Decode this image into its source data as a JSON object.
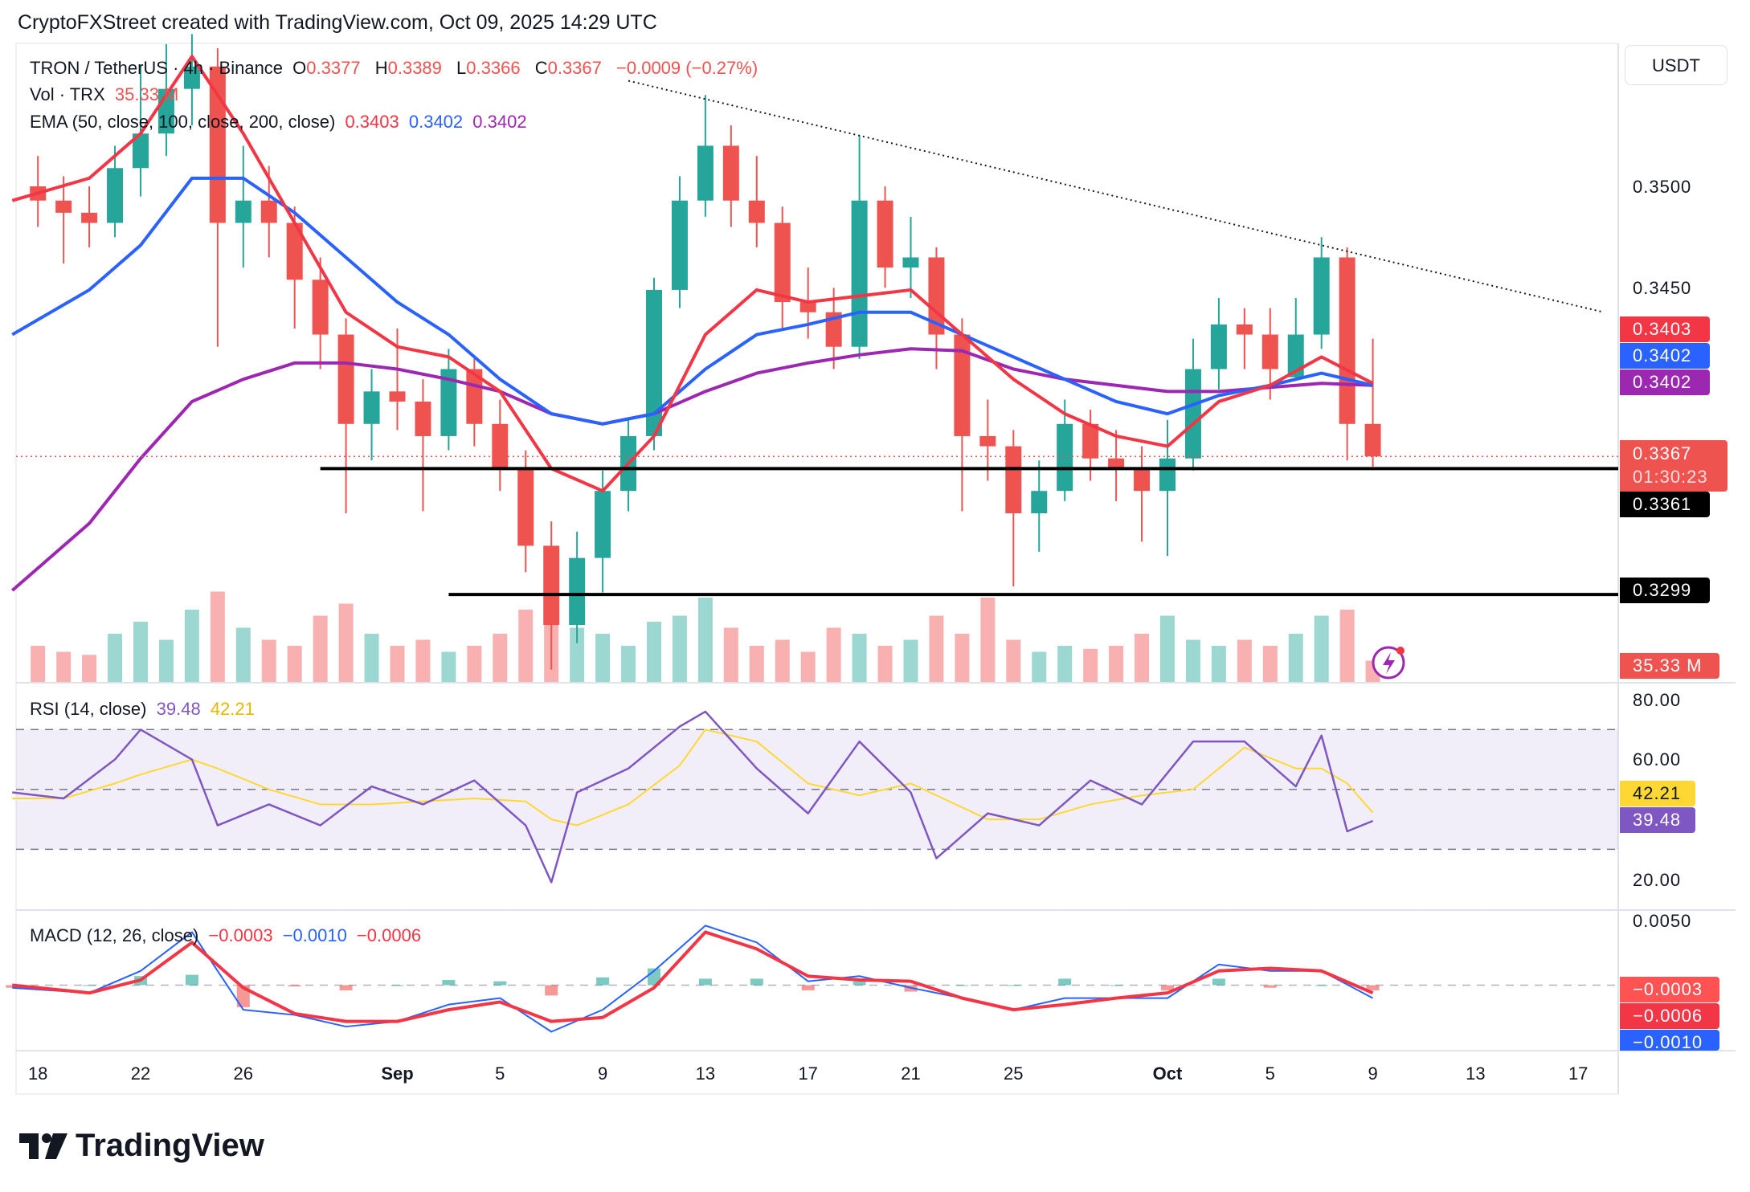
{
  "header": {
    "text": "CryptoFXStreet created with TradingView.com, Oct 09, 2025 14:29 UTC"
  },
  "legend": {
    "symbol": "TRON / TetherUS · 4h · Binance",
    "o_label": "O",
    "o": "0.3377",
    "h_label": "H",
    "h": "0.3389",
    "l_label": "L",
    "l": "0.3366",
    "c_label": "C",
    "c": "0.3367",
    "change": "−0.0009 (−0.27%)",
    "vol_label": "Vol · TRX",
    "vol": "35.33 M",
    "ema_label": "EMA (50, close, 100, close, 200, close)",
    "ema50": "0.3403",
    "ema100": "0.3402",
    "ema200": "0.3402",
    "rsi_label": "RSI (14, close)",
    "rsi": "39.48",
    "rsi_ma": "42.21",
    "macd_label": "MACD (12, 26, close)",
    "macd_hist": "−0.0003",
    "macd_line": "−0.0010",
    "macd_signal": "−0.0006"
  },
  "price_axis": {
    "currency": "USDT",
    "ticks": [
      "0.3500",
      "0.3450"
    ],
    "badges": {
      "ema50": "0.3403",
      "ema100": "0.3402",
      "ema200": "0.3402",
      "last": "0.3367",
      "countdown": "01:30:23",
      "support1": "0.3361",
      "support2": "0.3299",
      "volume": "35.33 M"
    }
  },
  "rsi_axis": {
    "ticks": [
      "80.00",
      "60.00",
      "20.00"
    ],
    "badges": {
      "ma": "42.21",
      "rsi": "39.48"
    }
  },
  "macd_axis": {
    "ticks": [
      "0.0050"
    ],
    "badges": {
      "hist": "−0.0003",
      "signal": "−0.0006",
      "macd": "−0.0010"
    }
  },
  "time_axis": [
    {
      "label": "18",
      "date": "2025-08-18"
    },
    {
      "label": "22",
      "date": "2025-08-22"
    },
    {
      "label": "26",
      "date": "2025-08-26"
    },
    {
      "label": "Sep",
      "date": "2025-09-01"
    },
    {
      "label": "5",
      "date": "2025-09-05"
    },
    {
      "label": "9",
      "date": "2025-09-09"
    },
    {
      "label": "13",
      "date": "2025-09-13"
    },
    {
      "label": "17",
      "date": "2025-09-17"
    },
    {
      "label": "21",
      "date": "2025-09-21"
    },
    {
      "label": "25",
      "date": "2025-09-25"
    },
    {
      "label": "Oct",
      "date": "2025-10-01"
    },
    {
      "label": "5",
      "date": "2025-10-05"
    },
    {
      "label": "9",
      "date": "2025-10-09"
    },
    {
      "label": "13",
      "date": "2025-10-13"
    },
    {
      "label": "17",
      "date": "2025-10-17"
    }
  ],
  "branding": {
    "logo_text": "TradingView"
  },
  "colors": {
    "up": "#26a69a",
    "down": "#ef5350",
    "ema50": "#f23645",
    "ema100": "#2962ff",
    "ema200": "#9c27b0",
    "rsi": "#7e57c2",
    "rsi_ma": "#fdd835",
    "macd": "#2962ff",
    "signal": "#f23645"
  },
  "chart_data": {
    "type": "candlestick",
    "price_range": [
      0.3262,
      0.3575
    ],
    "candles": [
      [
        "2025-08-18",
        0.35,
        0.3515,
        0.348,
        0.3493,
        60
      ],
      [
        "2025-08-19",
        0.3493,
        0.3505,
        0.3462,
        0.3487,
        50
      ],
      [
        "2025-08-20",
        0.3487,
        0.35,
        0.347,
        0.3482,
        45
      ],
      [
        "2025-08-21",
        0.3482,
        0.352,
        0.3475,
        0.3509,
        80
      ],
      [
        "2025-08-22",
        0.3509,
        0.356,
        0.3495,
        0.3526,
        100
      ],
      [
        "2025-08-23",
        0.3526,
        0.357,
        0.3515,
        0.3548,
        70
      ],
      [
        "2025-08-24",
        0.3548,
        0.3575,
        0.353,
        0.3559,
        120
      ],
      [
        "2025-08-25",
        0.3559,
        0.3568,
        0.3421,
        0.3482,
        150
      ],
      [
        "2025-08-26",
        0.3482,
        0.352,
        0.346,
        0.3493,
        90
      ],
      [
        "2025-08-27",
        0.3493,
        0.351,
        0.3465,
        0.3482,
        70
      ],
      [
        "2025-08-28",
        0.3482,
        0.349,
        0.343,
        0.3454,
        60
      ],
      [
        "2025-08-29",
        0.3454,
        0.3465,
        0.341,
        0.3427,
        110
      ],
      [
        "2025-08-30",
        0.3427,
        0.3435,
        0.3339,
        0.3383,
        130
      ],
      [
        "2025-08-31",
        0.3383,
        0.341,
        0.3365,
        0.3399,
        80
      ],
      [
        "2025-09-01",
        0.3399,
        0.343,
        0.338,
        0.3394,
        60
      ],
      [
        "2025-09-02",
        0.3394,
        0.3405,
        0.334,
        0.3377,
        70
      ],
      [
        "2025-09-03",
        0.3377,
        0.342,
        0.337,
        0.341,
        50
      ],
      [
        "2025-09-04",
        0.341,
        0.3415,
        0.3372,
        0.3383,
        60
      ],
      [
        "2025-09-05",
        0.3383,
        0.3395,
        0.335,
        0.3361,
        80
      ],
      [
        "2025-09-06",
        0.3361,
        0.337,
        0.331,
        0.3323,
        120
      ],
      [
        "2025-09-07",
        0.3323,
        0.3335,
        0.3262,
        0.3284,
        190
      ],
      [
        "2025-09-08",
        0.3284,
        0.333,
        0.3275,
        0.3317,
        90
      ],
      [
        "2025-09-09",
        0.3317,
        0.336,
        0.33,
        0.335,
        80
      ],
      [
        "2025-09-10",
        0.335,
        0.3385,
        0.334,
        0.3377,
        60
      ],
      [
        "2025-09-11",
        0.3377,
        0.3455,
        0.337,
        0.3449,
        100
      ],
      [
        "2025-09-12",
        0.3449,
        0.3505,
        0.344,
        0.3493,
        110
      ],
      [
        "2025-09-13",
        0.3493,
        0.3545,
        0.3485,
        0.352,
        140
      ],
      [
        "2025-09-14",
        0.352,
        0.353,
        0.348,
        0.3493,
        90
      ],
      [
        "2025-09-15",
        0.3493,
        0.3515,
        0.347,
        0.3482,
        60
      ],
      [
        "2025-09-16",
        0.3482,
        0.349,
        0.343,
        0.3443,
        70
      ],
      [
        "2025-09-17",
        0.3443,
        0.346,
        0.3425,
        0.3438,
        50
      ],
      [
        "2025-09-18",
        0.3438,
        0.345,
        0.341,
        0.3421,
        90
      ],
      [
        "2025-09-19",
        0.3421,
        0.3525,
        0.3415,
        0.3493,
        80
      ],
      [
        "2025-09-20",
        0.3493,
        0.35,
        0.345,
        0.346,
        60
      ],
      [
        "2025-09-21",
        0.346,
        0.3485,
        0.3445,
        0.3465,
        70
      ],
      [
        "2025-09-22",
        0.3465,
        0.347,
        0.341,
        0.3427,
        110
      ],
      [
        "2025-09-23",
        0.3427,
        0.3435,
        0.334,
        0.3377,
        80
      ],
      [
        "2025-09-24",
        0.3377,
        0.3395,
        0.3355,
        0.3372,
        140
      ],
      [
        "2025-09-25",
        0.3372,
        0.338,
        0.3303,
        0.3339,
        70
      ],
      [
        "2025-09-26",
        0.3339,
        0.3365,
        0.332,
        0.335,
        50
      ],
      [
        "2025-09-27",
        0.335,
        0.3395,
        0.3345,
        0.3383,
        60
      ],
      [
        "2025-09-28",
        0.3383,
        0.339,
        0.3355,
        0.3366,
        55
      ],
      [
        "2025-09-29",
        0.3366,
        0.338,
        0.3345,
        0.3361,
        60
      ],
      [
        "2025-09-30",
        0.3361,
        0.3372,
        0.3325,
        0.335,
        80
      ],
      [
        "2025-10-01",
        0.335,
        0.3385,
        0.3318,
        0.3366,
        110
      ],
      [
        "2025-10-02",
        0.3366,
        0.3425,
        0.336,
        0.341,
        70
      ],
      [
        "2025-10-03",
        0.341,
        0.3445,
        0.34,
        0.3432,
        60
      ],
      [
        "2025-10-04",
        0.3432,
        0.344,
        0.341,
        0.3427,
        70
      ],
      [
        "2025-10-05",
        0.3427,
        0.344,
        0.3395,
        0.341,
        60
      ],
      [
        "2025-10-06",
        0.3406,
        0.3445,
        0.3405,
        0.3427,
        80
      ],
      [
        "2025-10-07",
        0.3427,
        0.3475,
        0.342,
        0.3465,
        110
      ],
      [
        "2025-10-08",
        0.3465,
        0.347,
        0.3365,
        0.3383,
        120
      ],
      [
        "2025-10-09",
        0.3383,
        0.3425,
        0.3362,
        0.3367,
        35.33
      ]
    ],
    "ema": {
      "dates": [
        "2025-08-17",
        "2025-08-20",
        "2025-08-22",
        "2025-08-24",
        "2025-08-26",
        "2025-08-28",
        "2025-08-30",
        "2025-09-01",
        "2025-09-03",
        "2025-09-05",
        "2025-09-07",
        "2025-09-09",
        "2025-09-11",
        "2025-09-13",
        "2025-09-15",
        "2025-09-17",
        "2025-09-19",
        "2025-09-21",
        "2025-09-23",
        "2025-09-25",
        "2025-09-27",
        "2025-09-29",
        "2025-10-01",
        "2025-10-03",
        "2025-10-05",
        "2025-10-07",
        "2025-10-09"
      ],
      "ema50": [
        0.3493,
        0.3504,
        0.3526,
        0.3564,
        0.3526,
        0.3482,
        0.3438,
        0.3421,
        0.3416,
        0.3399,
        0.3361,
        0.335,
        0.3377,
        0.3427,
        0.3449,
        0.3443,
        0.3446,
        0.3449,
        0.3427,
        0.3405,
        0.3388,
        0.3377,
        0.3372,
        0.3394,
        0.3402,
        0.3416,
        0.3403
      ],
      "ema100": [
        0.3427,
        0.3449,
        0.3471,
        0.3504,
        0.3504,
        0.3487,
        0.3465,
        0.3443,
        0.3427,
        0.3405,
        0.3388,
        0.3383,
        0.3388,
        0.341,
        0.3427,
        0.3432,
        0.3438,
        0.3438,
        0.3427,
        0.3416,
        0.3405,
        0.3394,
        0.3388,
        0.3397,
        0.3402,
        0.3408,
        0.3402
      ],
      "ema200": [
        0.3301,
        0.3334,
        0.3366,
        0.3394,
        0.3405,
        0.3413,
        0.3413,
        0.341,
        0.3405,
        0.3399,
        0.3388,
        0.3383,
        0.3388,
        0.3399,
        0.3408,
        0.3413,
        0.3417,
        0.342,
        0.3419,
        0.341,
        0.3405,
        0.3402,
        0.3399,
        0.3399,
        0.3401,
        0.3403,
        0.3402
      ]
    },
    "trendline": [
      [
        "2025-09-10",
        0.3552
      ],
      [
        "2025-10-18",
        0.3438
      ]
    ],
    "levels": [
      {
        "value": 0.3361,
        "from": "2025-08-29"
      },
      {
        "value": 0.3299,
        "from": "2025-09-03"
      }
    ],
    "last_price": 0.3367,
    "rsi": {
      "range": [
        10,
        90
      ],
      "bands": [
        70,
        50,
        30
      ],
      "dates": [
        "2025-08-17",
        "2025-08-19",
        "2025-08-21",
        "2025-08-22",
        "2025-08-24",
        "2025-08-25",
        "2025-08-27",
        "2025-08-29",
        "2025-08-31",
        "2025-09-02",
        "2025-09-04",
        "2025-09-06",
        "2025-09-07",
        "2025-09-08",
        "2025-09-10",
        "2025-09-12",
        "2025-09-13",
        "2025-09-15",
        "2025-09-17",
        "2025-09-19",
        "2025-09-21",
        "2025-09-22",
        "2025-09-24",
        "2025-09-26",
        "2025-09-28",
        "2025-09-30",
        "2025-10-02",
        "2025-10-04",
        "2025-10-06",
        "2025-10-07",
        "2025-10-08",
        "2025-10-09"
      ],
      "rsi": [
        49,
        47,
        60,
        70,
        60,
        38,
        45,
        38,
        51,
        45,
        53,
        38,
        19,
        49,
        57,
        71,
        76,
        57,
        42,
        66,
        49,
        27,
        42,
        38,
        53,
        45,
        66,
        66,
        51,
        68,
        36,
        39.48
      ],
      "ma": [
        47,
        47,
        52,
        55,
        60,
        57,
        50,
        45,
        45,
        46,
        47,
        46,
        40,
        38,
        45,
        58,
        70,
        66,
        52,
        48,
        52,
        48,
        40,
        40,
        45,
        48,
        50,
        64,
        57,
        57,
        52,
        42.21
      ]
    },
    "macd": {
      "dates": [
        "2025-08-17",
        "2025-08-20",
        "2025-08-22",
        "2025-08-24",
        "2025-08-26",
        "2025-08-28",
        "2025-08-30",
        "2025-09-01",
        "2025-09-03",
        "2025-09-05",
        "2025-09-07",
        "2025-09-09",
        "2025-09-11",
        "2025-09-13",
        "2025-09-15",
        "2025-09-17",
        "2025-09-19",
        "2025-09-21",
        "2025-09-23",
        "2025-09-25",
        "2025-09-27",
        "2025-09-29",
        "2025-10-01",
        "2025-10-03",
        "2025-10-05",
        "2025-10-07",
        "2025-10-09"
      ],
      "macd": [
        -0.0002,
        -0.0006,
        0.0011,
        0.0041,
        -0.0019,
        -0.0023,
        -0.0032,
        -0.0028,
        -0.0015,
        -0.001,
        -0.0036,
        -0.0019,
        0.0011,
        0.0046,
        0.0033,
        0.0003,
        0.0007,
        -0.0002,
        -0.001,
        -0.0019,
        -0.001,
        -0.001,
        -0.001,
        0.0016,
        0.0011,
        0.0011,
        -0.001
      ],
      "signal": [
        0.0,
        -0.0006,
        0.0004,
        0.0033,
        -0.0002,
        -0.0022,
        -0.0028,
        -0.0028,
        -0.0019,
        -0.0013,
        -0.0028,
        -0.0025,
        -0.0002,
        0.0041,
        0.0028,
        0.0007,
        0.0004,
        0.0003,
        -0.001,
        -0.0019,
        -0.0015,
        -0.001,
        -0.0006,
        0.0011,
        0.0013,
        0.0011,
        -0.0006
      ]
    }
  }
}
